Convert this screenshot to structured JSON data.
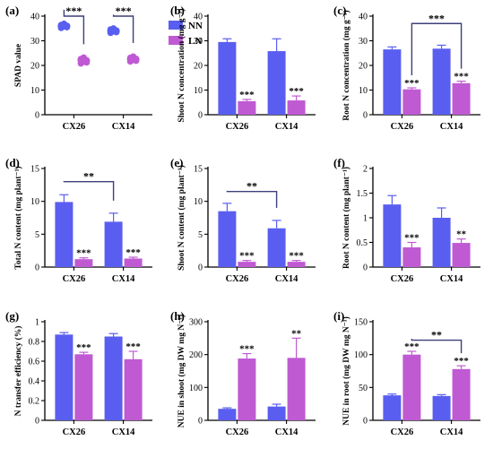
{
  "colors": {
    "nn": "#5a5ef0",
    "ln": "#bf5ad3",
    "axis": "#000000",
    "bracket": "#3d3f7a"
  },
  "legend": {
    "items": [
      "NN",
      "LN"
    ]
  },
  "chart_data": [
    {
      "panel": "(a)",
      "type": "scatter",
      "ylabel": "SPAD value",
      "ylim": [
        0,
        40
      ],
      "yticks": [
        0,
        10,
        20,
        30,
        40
      ],
      "categories": [
        "CX26",
        "CX14"
      ],
      "series": [
        {
          "name": "NN",
          "values": [
            36.0,
            34.0
          ],
          "points": [
            [
              35.2,
              35.8,
              36.1,
              36.4,
              36.9,
              35.5
            ],
            [
              33.2,
              33.8,
              34.2,
              34.6,
              35.0,
              33.5
            ]
          ]
        },
        {
          "name": "LN",
          "values": [
            22.0,
            22.5
          ],
          "points": [
            [
              20.8,
              21.5,
              22.1,
              22.6,
              23.2,
              21.2
            ],
            [
              21.6,
              22.2,
              22.7,
              23.1,
              23.6,
              21.9
            ]
          ]
        }
      ],
      "annotations": [
        {
          "type": "bracket",
          "cats": [
            0,
            0
          ],
          "groups": [
            0,
            1
          ],
          "y": 40,
          "label": "***"
        },
        {
          "type": "bracket",
          "cats": [
            1,
            1
          ],
          "groups": [
            0,
            1
          ],
          "y": 40,
          "label": "***"
        }
      ]
    },
    {
      "panel": "(b)",
      "type": "bar",
      "ylabel": "Shoot N concentration (mg g⁻¹)",
      "ylim": [
        0,
        40
      ],
      "yticks": [
        0,
        10,
        20,
        30,
        40
      ],
      "categories": [
        "CX26",
        "CX14"
      ],
      "series": [
        {
          "name": "NN",
          "values": [
            29.5,
            25.8
          ],
          "errors": [
            1.3,
            5.0
          ],
          "sig": [
            "",
            ""
          ]
        },
        {
          "name": "LN",
          "values": [
            5.5,
            5.8
          ],
          "errors": [
            0.7,
            1.8
          ],
          "sig": [
            "***",
            "***"
          ]
        }
      ],
      "annotations": []
    },
    {
      "panel": "(c)",
      "type": "bar",
      "ylabel": "Root N concentration (mg g⁻¹)",
      "ylim": [
        0,
        40
      ],
      "yticks": [
        0,
        10,
        20,
        30,
        40
      ],
      "categories": [
        "CX26",
        "CX14"
      ],
      "series": [
        {
          "name": "NN",
          "values": [
            26.5,
            26.8
          ],
          "errors": [
            1.0,
            1.4
          ],
          "sig": [
            "",
            ""
          ]
        },
        {
          "name": "LN",
          "values": [
            10.3,
            12.8
          ],
          "errors": [
            0.6,
            0.8
          ],
          "sig": [
            "***",
            "***"
          ]
        }
      ],
      "annotations": [
        {
          "type": "bracket",
          "cats": [
            0,
            1
          ],
          "groups": [
            1,
            1
          ],
          "y": 37,
          "label": "***"
        }
      ]
    },
    {
      "panel": "(d)",
      "type": "bar",
      "ylabel": "Total N content (mg plant⁻¹)",
      "ylim": [
        0,
        15
      ],
      "yticks": [
        0,
        5,
        10,
        15
      ],
      "categories": [
        "CX26",
        "CX14"
      ],
      "series": [
        {
          "name": "NN",
          "values": [
            9.9,
            6.9
          ],
          "errors": [
            1.1,
            1.3
          ],
          "sig": [
            "",
            ""
          ]
        },
        {
          "name": "LN",
          "values": [
            1.2,
            1.3
          ],
          "errors": [
            0.2,
            0.2
          ],
          "sig": [
            "***",
            "***"
          ]
        }
      ],
      "annotations": [
        {
          "type": "bracket",
          "cats": [
            0,
            1
          ],
          "groups": [
            0,
            0
          ],
          "y": 13,
          "label": "**"
        }
      ]
    },
    {
      "panel": "(e)",
      "type": "bar",
      "ylabel": "Shoot N content (mg plant⁻¹)",
      "ylim": [
        0,
        15
      ],
      "yticks": [
        0,
        5,
        10,
        15
      ],
      "categories": [
        "CX26",
        "CX14"
      ],
      "series": [
        {
          "name": "NN",
          "values": [
            8.5,
            5.9
          ],
          "errors": [
            1.2,
            1.2
          ],
          "sig": [
            "",
            ""
          ]
        },
        {
          "name": "LN",
          "values": [
            0.8,
            0.8
          ],
          "errors": [
            0.2,
            0.2
          ],
          "sig": [
            "***",
            "***"
          ]
        }
      ],
      "annotations": [
        {
          "type": "bracket",
          "cats": [
            0,
            1
          ],
          "groups": [
            0,
            0
          ],
          "y": 11.5,
          "label": "**"
        }
      ]
    },
    {
      "panel": "(f)",
      "type": "bar",
      "ylabel": "Root N content (mg plant⁻¹)",
      "ylim": [
        0,
        2.0
      ],
      "yticks": [
        0,
        0.5,
        1.0,
        1.5,
        2.0
      ],
      "categories": [
        "CX26",
        "CX14"
      ],
      "series": [
        {
          "name": "NN",
          "values": [
            1.27,
            1.0
          ],
          "errors": [
            0.18,
            0.2
          ],
          "sig": [
            "",
            ""
          ]
        },
        {
          "name": "LN",
          "values": [
            0.4,
            0.49
          ],
          "errors": [
            0.1,
            0.08
          ],
          "sig": [
            "***",
            "**"
          ]
        }
      ],
      "annotations": []
    },
    {
      "panel": "(g)",
      "type": "bar",
      "ylabel": "N transfer efficiency (%)",
      "ylim": [
        0,
        1.0
      ],
      "yticks": [
        0,
        0.2,
        0.4,
        0.6,
        0.8,
        1.0
      ],
      "categories": [
        "CX26",
        "CX14"
      ],
      "series": [
        {
          "name": "NN",
          "values": [
            0.87,
            0.85
          ],
          "errors": [
            0.02,
            0.03
          ],
          "sig": [
            "",
            ""
          ]
        },
        {
          "name": "LN",
          "values": [
            0.67,
            0.62
          ],
          "errors": [
            0.02,
            0.08
          ],
          "sig": [
            "***",
            "***"
          ]
        }
      ],
      "annotations": []
    },
    {
      "panel": "(h)",
      "type": "bar",
      "ylabel": "NUE in shoot (mg DW mg N⁻¹)",
      "ylim": [
        0,
        300
      ],
      "yticks": [
        0,
        100,
        200,
        300
      ],
      "categories": [
        "CX26",
        "CX14"
      ],
      "series": [
        {
          "name": "NN",
          "values": [
            35,
            42
          ],
          "errors": [
            3,
            7
          ],
          "sig": [
            "",
            ""
          ]
        },
        {
          "name": "LN",
          "values": [
            188,
            190
          ],
          "errors": [
            15,
            60
          ],
          "sig": [
            "***",
            "**"
          ]
        }
      ],
      "annotations": []
    },
    {
      "panel": "(i)",
      "type": "bar",
      "ylabel": "NUE in root (mg DW mg N⁻¹)",
      "ylim": [
        0,
        150
      ],
      "yticks": [
        0,
        50,
        100,
        150
      ],
      "categories": [
        "CX26",
        "CX14"
      ],
      "series": [
        {
          "name": "NN",
          "values": [
            38,
            37
          ],
          "errors": [
            2,
            2
          ],
          "sig": [
            "",
            ""
          ]
        },
        {
          "name": "LN",
          "values": [
            100,
            78
          ],
          "errors": [
            5,
            5
          ],
          "sig": [
            "***",
            "***"
          ]
        }
      ],
      "annotations": [
        {
          "type": "bracket",
          "cats": [
            0,
            1
          ],
          "groups": [
            1,
            1
          ],
          "y": 122,
          "label": "**"
        }
      ]
    }
  ]
}
